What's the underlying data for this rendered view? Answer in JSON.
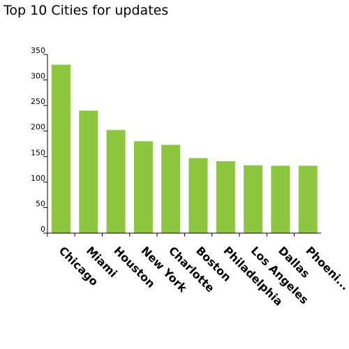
{
  "chart_data": {
    "type": "bar",
    "title": "Top 10 Cities for updates",
    "xlabel": "",
    "ylabel": "",
    "categories": [
      "Chicago",
      "Miami",
      "Houston",
      "New York",
      "Charlotte",
      "Boston",
      "Philadelphia",
      "Los Angeles",
      "Dallas",
      "Phoeni..."
    ],
    "values": [
      330,
      240,
      202,
      180,
      173,
      147,
      141,
      133,
      132,
      132
    ],
    "ylim": [
      0,
      350
    ],
    "yticks": [
      0,
      50,
      100,
      150,
      200,
      250,
      300,
      350
    ],
    "bar_color": "#8dc63f",
    "grid": false,
    "legend": "none"
  }
}
